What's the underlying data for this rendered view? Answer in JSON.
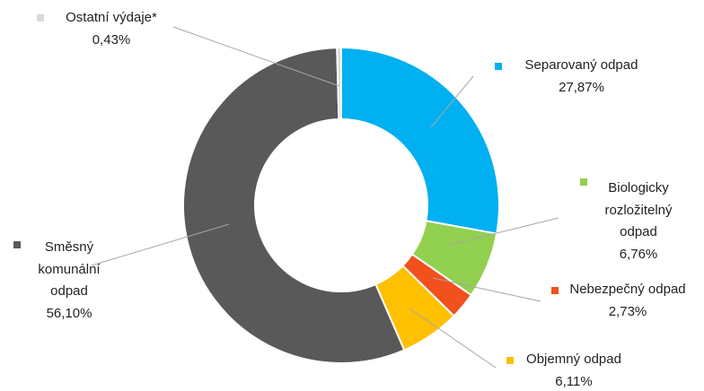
{
  "chart_data": {
    "type": "donut",
    "categories": [
      "Separovaný odpad",
      "Biologicky rozložitelný odpad",
      "Nebezpečný odpad",
      "Objemný odpad",
      "Směsný komunální odpad",
      "Ostatní výdaje*"
    ],
    "values": [
      27.87,
      6.76,
      2.73,
      6.11,
      56.1,
      0.43
    ],
    "value_labels": [
      "27,87%",
      "6,76%",
      "2,73%",
      "6,11%",
      "56,10%",
      "0,43%"
    ],
    "colors": [
      "#00b0f0",
      "#92d050",
      "#f2501c",
      "#ffc000",
      "#595959",
      "#d9d9d9"
    ]
  }
}
